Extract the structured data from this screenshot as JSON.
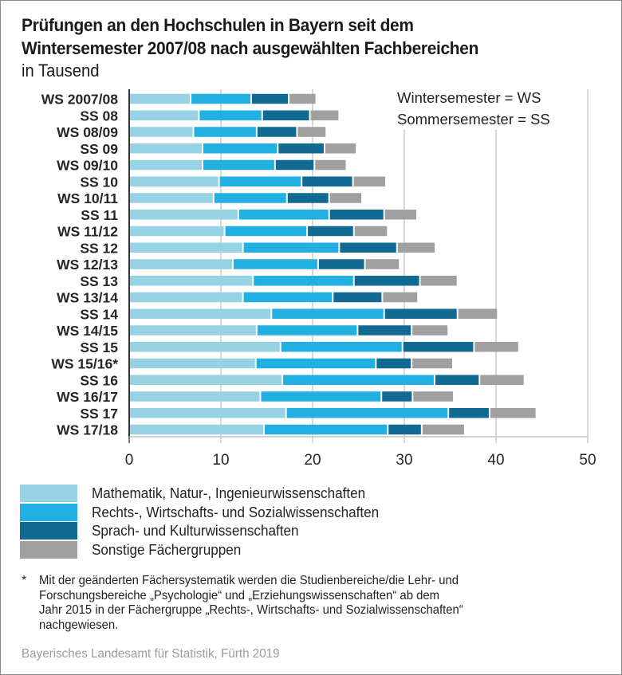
{
  "chart_data": {
    "type": "bar",
    "orientation": "horizontal",
    "stacked": true,
    "title": "Prüfungen an den Hochschulen in Bayern seit dem Wintersemester 2007/08 nach ausgewählten Fachbereichen",
    "title_lines": [
      "Prüfungen an den Hochschulen in Bayern seit dem",
      "Wintersemester 2007/08 nach ausgewählten Fachbereichen"
    ],
    "subtitle": "in Tausend",
    "xlabel": "",
    "ylabel": "",
    "xlim": [
      0,
      50
    ],
    "xticks": [
      0,
      10,
      20,
      30,
      40,
      50
    ],
    "grid": true,
    "legend_position": "bottom",
    "annotation_lines": [
      "Wintersemester = WS",
      "Sommersemester = SS"
    ],
    "categories": [
      "WS 2007/08",
      "SS 08",
      "WS 08/09",
      "SS 09",
      "WS 09/10",
      "SS 10",
      "WS 10/11",
      "SS 11",
      "WS 11/12",
      "SS 12",
      "WS 12/13",
      "SS 13",
      "WS 13/14",
      "SS 14",
      "WS 14/15",
      "SS 15",
      "WS 15/16*",
      "SS 16",
      "WS 16/17",
      "SS 17",
      "WS 17/18"
    ],
    "series": [
      {
        "name": "Mathematik, Natur-, Ingenieurwissenschaften",
        "color": "#98d3e5",
        "values": [
          6.7,
          7.6,
          7.0,
          8.0,
          8.0,
          9.8,
          9.2,
          11.9,
          10.4,
          12.4,
          11.3,
          13.5,
          12.4,
          15.5,
          13.9,
          16.5,
          13.8,
          16.7,
          14.3,
          17.1,
          14.7
        ]
      },
      {
        "name": "Rechts-, Wirtschafts- und Sozialwissenschaften",
        "color": "#22b0e3",
        "values": [
          6.6,
          6.9,
          6.9,
          8.2,
          7.9,
          9.0,
          8.0,
          9.9,
          9.0,
          10.5,
          9.3,
          11.0,
          9.8,
          12.3,
          11.0,
          13.3,
          13.1,
          16.6,
          13.2,
          17.7,
          13.5
        ]
      },
      {
        "name": "Sprach- und Kulturwissenschaften",
        "color": "#106a91",
        "values": [
          4.1,
          5.2,
          4.4,
          5.1,
          4.3,
          5.6,
          4.6,
          6.0,
          5.1,
          6.3,
          5.1,
          7.2,
          5.4,
          8.0,
          5.9,
          7.8,
          3.9,
          4.9,
          3.4,
          4.5,
          3.7
        ]
      },
      {
        "name": "Sonstige Fächergruppen",
        "color": "#a0a0a0",
        "values": [
          3.0,
          3.2,
          3.2,
          3.5,
          3.5,
          3.6,
          3.6,
          3.6,
          3.7,
          4.2,
          3.8,
          4.1,
          3.9,
          4.4,
          4.0,
          4.9,
          4.5,
          4.9,
          4.5,
          5.1,
          4.7
        ]
      }
    ]
  },
  "footnote": {
    "marker": "*",
    "text": "Mit der geänderten Fächersystematik werden die Studienbereiche/die Lehr- und\nForschungsbereiche „Psychologie“ und „Erziehungswissenschaften“ ab dem\nJahr 2015 in der Fächergruppe „Rechts-, Wirtschafts- und Sozialwissenschaften“\nnachgewiesen."
  },
  "source": "Bayerisches Landesamt für Statistik, Fürth 2019"
}
